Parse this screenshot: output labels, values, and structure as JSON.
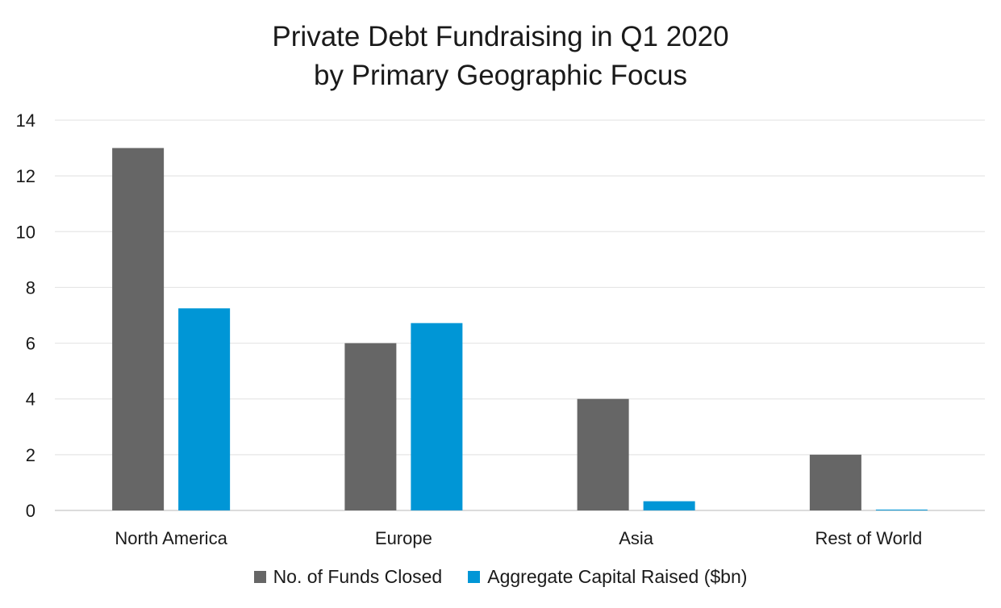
{
  "chart_data": {
    "type": "bar",
    "title_line1": "Private Debt Fundraising in Q1 2020",
    "title_line2": "by Primary Geographic Focus",
    "categories": [
      "North America",
      "Europe",
      "Asia",
      "Rest of World"
    ],
    "series": [
      {
        "name": "No. of Funds Closed",
        "color": "#666666",
        "values": [
          13,
          6,
          4,
          2
        ]
      },
      {
        "name": "Aggregate Capital Raised ($bn)",
        "color": "#0096d6",
        "values": [
          7.25,
          6.72,
          0.33,
          0.03
        ]
      }
    ],
    "ylim": [
      0,
      14
    ],
    "yticks": [
      "0",
      "2",
      "4",
      "6",
      "8",
      "10",
      "12",
      "14"
    ],
    "grid": true,
    "legend_position": "bottom"
  }
}
